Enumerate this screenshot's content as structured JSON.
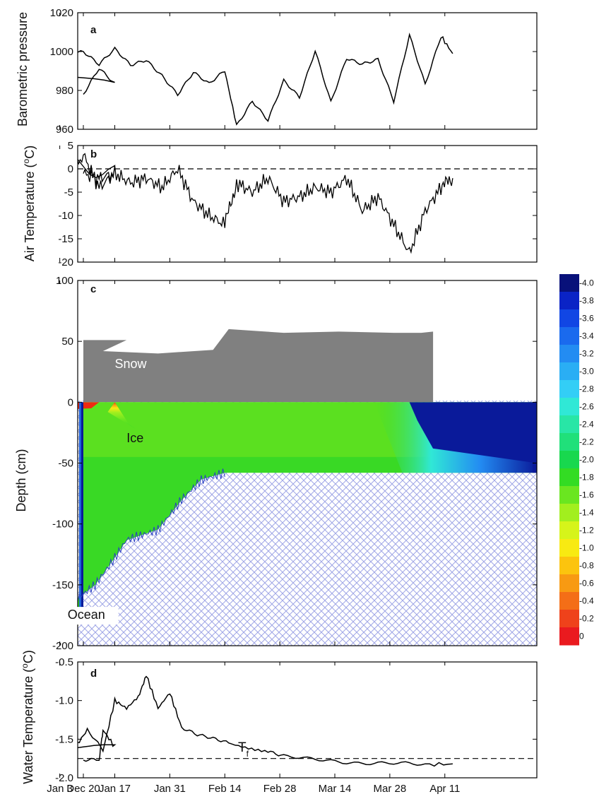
{
  "chart_data": [
    {
      "type": "line",
      "panel": "a",
      "ylabel": "Barometric pressure",
      "ylim": [
        960,
        1020
      ],
      "yticks": [
        "960",
        "980",
        "1000",
        "1020"
      ],
      "x": [
        "Dec 20",
        "Dec 24",
        "Dec 28",
        "Jan 1",
        "Jan 5",
        "Jan 9",
        "Jan 13",
        "Jan 17",
        "Jan 21",
        "Jan 25",
        "Jan 29",
        "Feb 2",
        "Feb 6",
        "Feb 10",
        "Feb 14",
        "Feb 17",
        "Feb 21",
        "Feb 25",
        "Mar 1",
        "Mar 5",
        "Mar 9",
        "Mar 13",
        "Mar 17",
        "Mar 21",
        "Mar 25",
        "Mar 29",
        "Apr 2",
        "Apr 6",
        "Apr 10",
        "Apr 13"
      ],
      "values": [
        978,
        991,
        983,
        990,
        999,
        1000,
        993,
        1001,
        993,
        996,
        988,
        978,
        989,
        983,
        990,
        962,
        975,
        965,
        985,
        976,
        1000,
        974,
        997,
        994,
        996,
        974,
        1008,
        983,
        1008,
        999
      ]
    },
    {
      "type": "line",
      "panel": "b",
      "ylabel": "Air Temperature (°C)",
      "ylabel_parts": [
        "Air Temperature (",
        "o",
        "C)"
      ],
      "ylim": [
        -20,
        5
      ],
      "yticks": [
        "-20",
        "-15",
        "-10",
        "-5",
        "0",
        "5"
      ],
      "x": [
        "Dec 20",
        "Dec 24",
        "Dec 28",
        "Jan 1",
        "Jan 5",
        "Jan 9",
        "Jan 13",
        "Jan 17",
        "Jan 21",
        "Jan 25",
        "Jan 29",
        "Feb 2",
        "Feb 6",
        "Feb 10",
        "Feb 14",
        "Feb 17",
        "Feb 21",
        "Feb 25",
        "Mar 1",
        "Mar 5",
        "Mar 9",
        "Mar 13",
        "Mar 17",
        "Mar 21",
        "Mar 25",
        "Mar 29",
        "Apr 2",
        "Apr 6",
        "Apr 10",
        "Apr 13"
      ],
      "values": [
        -1,
        -2,
        -1,
        2,
        -3,
        3,
        -4,
        -1,
        -3,
        -2,
        -4,
        0,
        -7,
        -10,
        -12,
        -3,
        -5,
        -2,
        -7,
        -6,
        -4,
        -5,
        -2,
        -9,
        -6,
        -12,
        -18,
        -9,
        -4,
        -2
      ],
      "reference_line": 0
    },
    {
      "type": "heatmap",
      "panel": "c",
      "ylabel": "Depth (cm)",
      "ylim": [
        -200,
        100
      ],
      "yticks": [
        "-200",
        "-150",
        "-100",
        "-50",
        "0",
        "50",
        "100"
      ],
      "labels": [
        "Snow",
        "Ice",
        "Ocean"
      ],
      "snow_top": {
        "x": [
          "Dec 20",
          "Dec 31",
          "Jan 14",
          "Jan 28",
          "Feb 11",
          "Feb 15",
          "Mar 1",
          "Mar 15",
          "Mar 29",
          "Apr 5",
          "Apr 8"
        ],
        "values": [
          51,
          51,
          42,
          40,
          43,
          60,
          57,
          58,
          57,
          57,
          58
        ]
      },
      "ice_bottom": {
        "x": [
          "Dec 20",
          "Jan 2",
          "Jan 6",
          "Jan 12",
          "Jan 17",
          "Jan 20",
          "Jan 28",
          "Feb 3",
          "Feb 8",
          "Feb 14",
          "Apr 13"
        ],
        "values": [
          -172,
          -172,
          -165,
          -150,
          -128,
          -113,
          -105,
          -80,
          -64,
          -58,
          -58
        ]
      },
      "colorbar": {
        "ticks": [
          "-4.0",
          "-3.8",
          "-3.6",
          "-3.4",
          "-3.2",
          "-3.0",
          "-2.8",
          "-2.6",
          "-2.4",
          "-2.2",
          "-2.0",
          "-1.8",
          "-1.6",
          "-1.4",
          "-1.2",
          "-1.0",
          "-0.8",
          "-0.6",
          "-0.4",
          "-0.2",
          "0"
        ],
        "colors": [
          "#08117a",
          "#0a23c6",
          "#1146e4",
          "#1a6aee",
          "#238cf2",
          "#2aaef4",
          "#33cef6",
          "#30e8d6",
          "#28e6a6",
          "#20e07a",
          "#18d84e",
          "#33dc23",
          "#6ae620",
          "#a2ef1e",
          "#d6f41a",
          "#f8ea12",
          "#fcc40e",
          "#f89a12",
          "#f46e17",
          "#ef421b",
          "#ea1a1f"
        ]
      },
      "color_stops": {
        "deep_cold": "#0a1a9a",
        "cold": "#1f62d9",
        "warm": "#ee2a12",
        "ice_mid": "#39d925",
        "ice_warm": "#79e61e",
        "snow": "#808080",
        "ocean_hatch": "#9fa6e6"
      }
    },
    {
      "type": "line",
      "panel": "d",
      "ylabel": "Water Temperature (°C)",
      "ylabel_parts": [
        "Water Temperature (",
        "o",
        "C)"
      ],
      "ylim": [
        -2.0,
        -0.5
      ],
      "yticks": [
        "-2.0",
        "-1.5",
        "-1.0",
        "-0.5"
      ],
      "x": [
        "Dec 20",
        "Dec 24",
        "Dec 25",
        "Dec 28",
        "Jan 1",
        "Jan 4",
        "Jan 7",
        "Jan 10",
        "Jan 14",
        "Jan 17",
        "Jan 20",
        "Jan 23",
        "Jan 25",
        "Jan 28",
        "Jan 31",
        "Feb 3",
        "Feb 7",
        "Feb 11",
        "Feb 15",
        "Feb 20",
        "Feb 25",
        "Mar 1",
        "Mar 7",
        "Mar 13",
        "Mar 19",
        "Mar 25",
        "Mar 31",
        "Apr 6",
        "Apr 13"
      ],
      "values": [
        -1.77,
        -1.77,
        -1.38,
        -1.6,
        -1.6,
        -1.25,
        -1.6,
        -1.38,
        -1.65,
        -1.0,
        -1.1,
        -0.95,
        -0.67,
        -1.1,
        -0.9,
        -1.35,
        -1.45,
        -1.5,
        -1.55,
        -1.6,
        -1.65,
        -1.72,
        -1.76,
        -1.78,
        -1.8,
        -1.81,
        -1.82,
        -1.83,
        -1.82
      ],
      "reference_line": -1.75,
      "reference_label": "T",
      "reference_label_sub": "f"
    }
  ],
  "x_axis": {
    "ticks": [
      "Dec 20",
      "Jan 3",
      "Jan 17",
      "Jan 31",
      "Feb 14",
      "Feb 28",
      "Mar 14",
      "Mar 28",
      "Apr 11"
    ]
  }
}
